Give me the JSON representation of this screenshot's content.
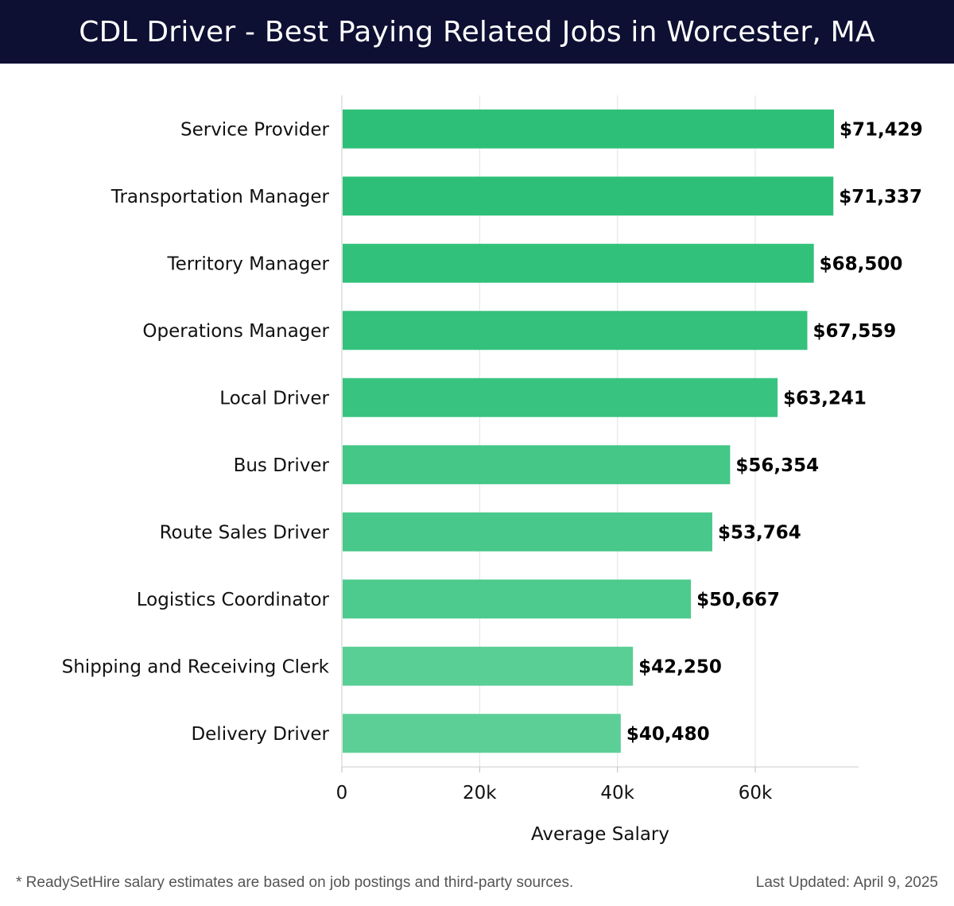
{
  "header": {
    "title": "CDL Driver - Best Paying Related Jobs in Worcester, MA"
  },
  "footer": {
    "note": "* ReadySetHire salary estimates are based on job postings and third-party sources.",
    "updated": "Last Updated: April 9, 2025"
  },
  "colors": {
    "title_bg": "#0d0f33",
    "bar_dark": "#2dbf78",
    "bar_light": "#5ccf97",
    "grid": "#e3e3e3"
  },
  "chart_data": {
    "type": "bar",
    "orientation": "horizontal",
    "categories": [
      "Service Provider",
      "Transportation Manager",
      "Territory Manager",
      "Operations Manager",
      "Local Driver",
      "Bus Driver",
      "Route Sales Driver",
      "Logistics Coordinator",
      "Shipping and Receiving Clerk",
      "Delivery Driver"
    ],
    "values": [
      71429,
      71337,
      68500,
      67559,
      63241,
      56354,
      53764,
      50667,
      42250,
      40480
    ],
    "value_labels": [
      "$71,429",
      "$71,337",
      "$68,500",
      "$67,559",
      "$63,241",
      "$56,354",
      "$53,764",
      "$50,667",
      "$42,250",
      "$40,480"
    ],
    "xlabel": "Average Salary",
    "xlim": [
      0,
      75000
    ],
    "xticks": [
      0,
      20000,
      40000,
      60000
    ],
    "xtick_labels": [
      "0",
      "20k",
      "40k",
      "60k"
    ],
    "grid": true
  }
}
